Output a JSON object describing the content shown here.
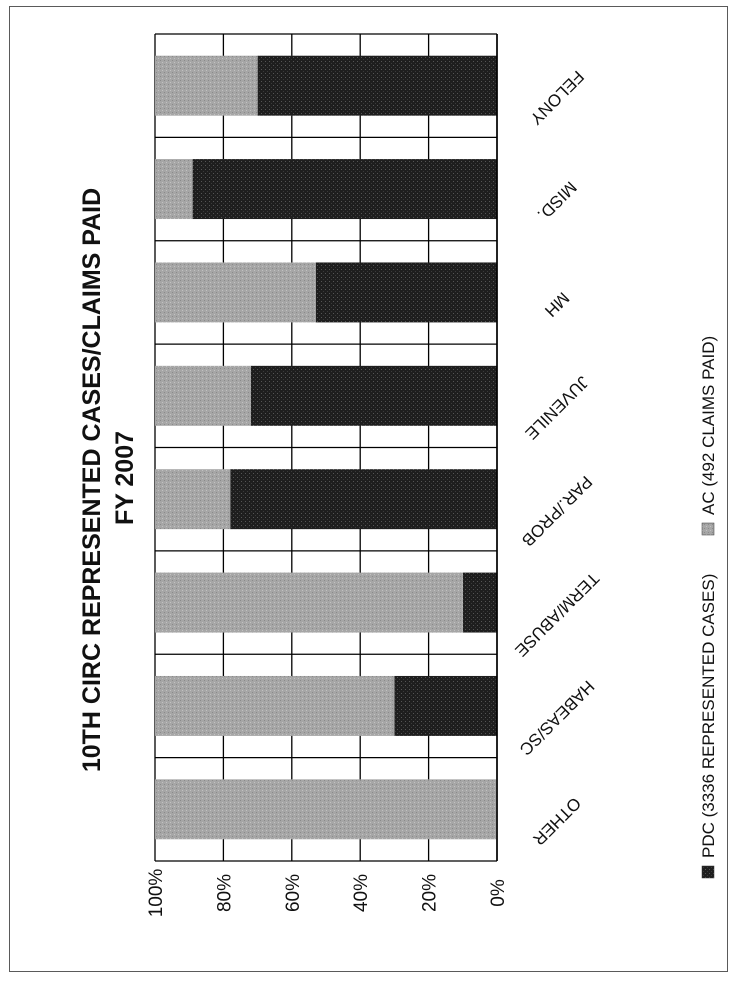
{
  "chart_data": {
    "type": "bar",
    "stacked": true,
    "orientation": "rotated-90",
    "title": "10TH CIRC REPRESENTED CASES/CLAIMS PAID",
    "subtitle": "FY 2007",
    "categories": [
      "FELONY",
      "MISD.",
      "MH",
      "JUVENILE",
      "PAR./PROB",
      "TERM/ABUSE",
      "HABEAS/SC",
      "OTHER"
    ],
    "series": [
      {
        "name": "PDC (3336 REPRESENTED CASES)",
        "color": "#222222",
        "values": [
          70,
          89,
          53,
          72,
          78,
          10,
          30,
          0
        ]
      },
      {
        "name": "AC (492 CLAIMS PAID)",
        "color": "#a8a8a8",
        "values": [
          30,
          11,
          47,
          28,
          22,
          90,
          70,
          100
        ]
      }
    ],
    "ylim": [
      0,
      100
    ],
    "y_ticks": [
      "0%",
      "20%",
      "40%",
      "60%",
      "80%",
      "100%"
    ],
    "grid": true,
    "legend_position": "bottom"
  }
}
